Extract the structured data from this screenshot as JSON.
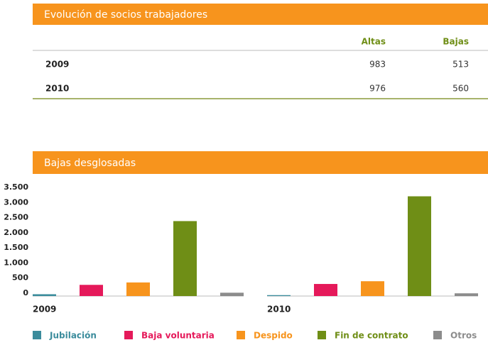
{
  "table": {
    "title": "Evolución de socios trabajadores",
    "header": [
      "Altas",
      "Bajas"
    ],
    "rows": [
      [
        "2009",
        983,
        513
      ],
      [
        "2010",
        976,
        560
      ]
    ]
  },
  "chart_data": {
    "type": "bar",
    "title": "Bajas desglosadas",
    "categories": [
      "2009",
      "2010"
    ],
    "series": [
      {
        "name": "Jubilación",
        "color": "#3b8c9c",
        "values": [
          60,
          30
        ]
      },
      {
        "name": "Baja voluntaria",
        "color": "#e5195a",
        "values": [
          370,
          400
        ]
      },
      {
        "name": "Despido",
        "color": "#f7941d",
        "values": [
          450,
          490
        ]
      },
      {
        "name": "Fin de contrato",
        "color": "#6f8e16",
        "values": [
          2480,
          3300
        ]
      },
      {
        "name": "Otros",
        "color": "#8c8c8c",
        "values": [
          110,
          90
        ]
      }
    ],
    "ylim": [
      0,
      3500
    ],
    "yticks": [
      0,
      500,
      {
        "value": 1000,
        "label": "1.000"
      },
      {
        "value": 1500,
        "label": "1.500"
      },
      {
        "value": 2000,
        "label": "2.000"
      },
      {
        "value": 2500,
        "label": "2.500"
      },
      {
        "value": 3000,
        "label": "3.000"
      },
      {
        "value": 3500,
        "label": "3.500"
      }
    ],
    "grid": false
  }
}
